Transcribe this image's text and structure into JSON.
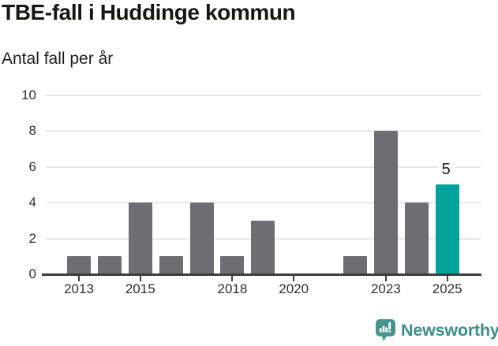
{
  "header": {
    "title": "TBE-fall i Huddinge kommun",
    "subtitle": "Antal fall per år"
  },
  "chart_data": {
    "type": "bar",
    "title": "TBE-fall i Huddinge kommun",
    "subtitle": "Antal fall per år",
    "categories": [
      2013,
      2014,
      2015,
      2016,
      2017,
      2018,
      2019,
      2020,
      2021,
      2022,
      2023,
      2024,
      2025
    ],
    "values": [
      1,
      1,
      4,
      1,
      4,
      1,
      3,
      0,
      0,
      1,
      8,
      4,
      5
    ],
    "highlight_category": 2025,
    "data_label": {
      "category": 2025,
      "text": "5"
    },
    "ylim": [
      0,
      10
    ],
    "y_ticks": [
      0,
      2,
      4,
      6,
      8,
      10
    ],
    "x_tick_labels": [
      "2013",
      "2015",
      "2018",
      "2020",
      "2023",
      "2025"
    ],
    "grid": true,
    "legend": "none",
    "colors": {
      "bar": "#6e6e72",
      "highlight": "#00a39c",
      "grid": "#e8e8e8",
      "axis": "#3d3d3d",
      "tick_label": "#2f2f2f",
      "data_label": "#1a1a1a"
    }
  },
  "footer": {
    "brand": "Newsworthy",
    "brand_color": "#3d8e88",
    "icon": "newsworthy-speech-bubble-chart-icon",
    "icon_color": "#47948e"
  }
}
